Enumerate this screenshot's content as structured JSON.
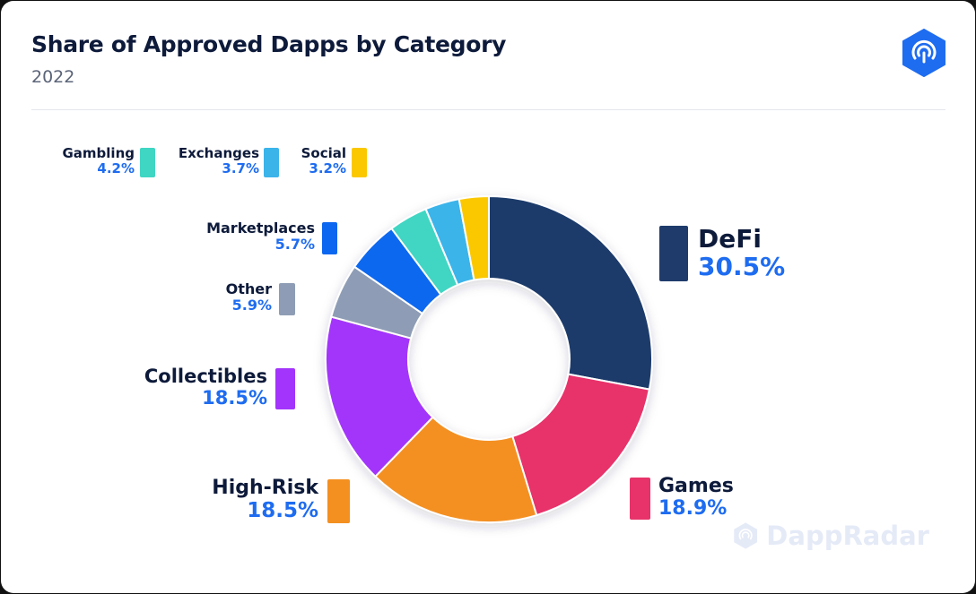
{
  "header": {
    "title": "Share of Approved Dapps by Category",
    "subtitle": "2022"
  },
  "brand": {
    "logo_icon": "dappradar-logo-icon",
    "watermark": "DappRadar",
    "accent": "#1e6cf0"
  },
  "chart_data": {
    "type": "pie",
    "style": "donut",
    "title": "Share of Approved Dapps by Category",
    "subtitle": "2022",
    "categories": [
      "DeFi",
      "Games",
      "High-Risk",
      "Collectibles",
      "Other",
      "Marketplaces",
      "Gambling",
      "Exchanges",
      "Social"
    ],
    "values": [
      30.5,
      18.9,
      18.5,
      18.5,
      5.9,
      5.7,
      4.2,
      3.7,
      3.2
    ],
    "value_labels": [
      "30.5%",
      "18.9%",
      "18.5%",
      "18.5%",
      "5.9%",
      "5.7%",
      "4.2%",
      "3.7%",
      "3.2%"
    ],
    "colors": [
      "#1f3b6b",
      "#e8336a",
      "#f49020",
      "#a334fb",
      "#8e9db5",
      "#0b67f0",
      "#3fd6c3",
      "#3bb4ea",
      "#fbc800"
    ],
    "unit": "%",
    "legend": "labels beside slices with color swatches"
  }
}
